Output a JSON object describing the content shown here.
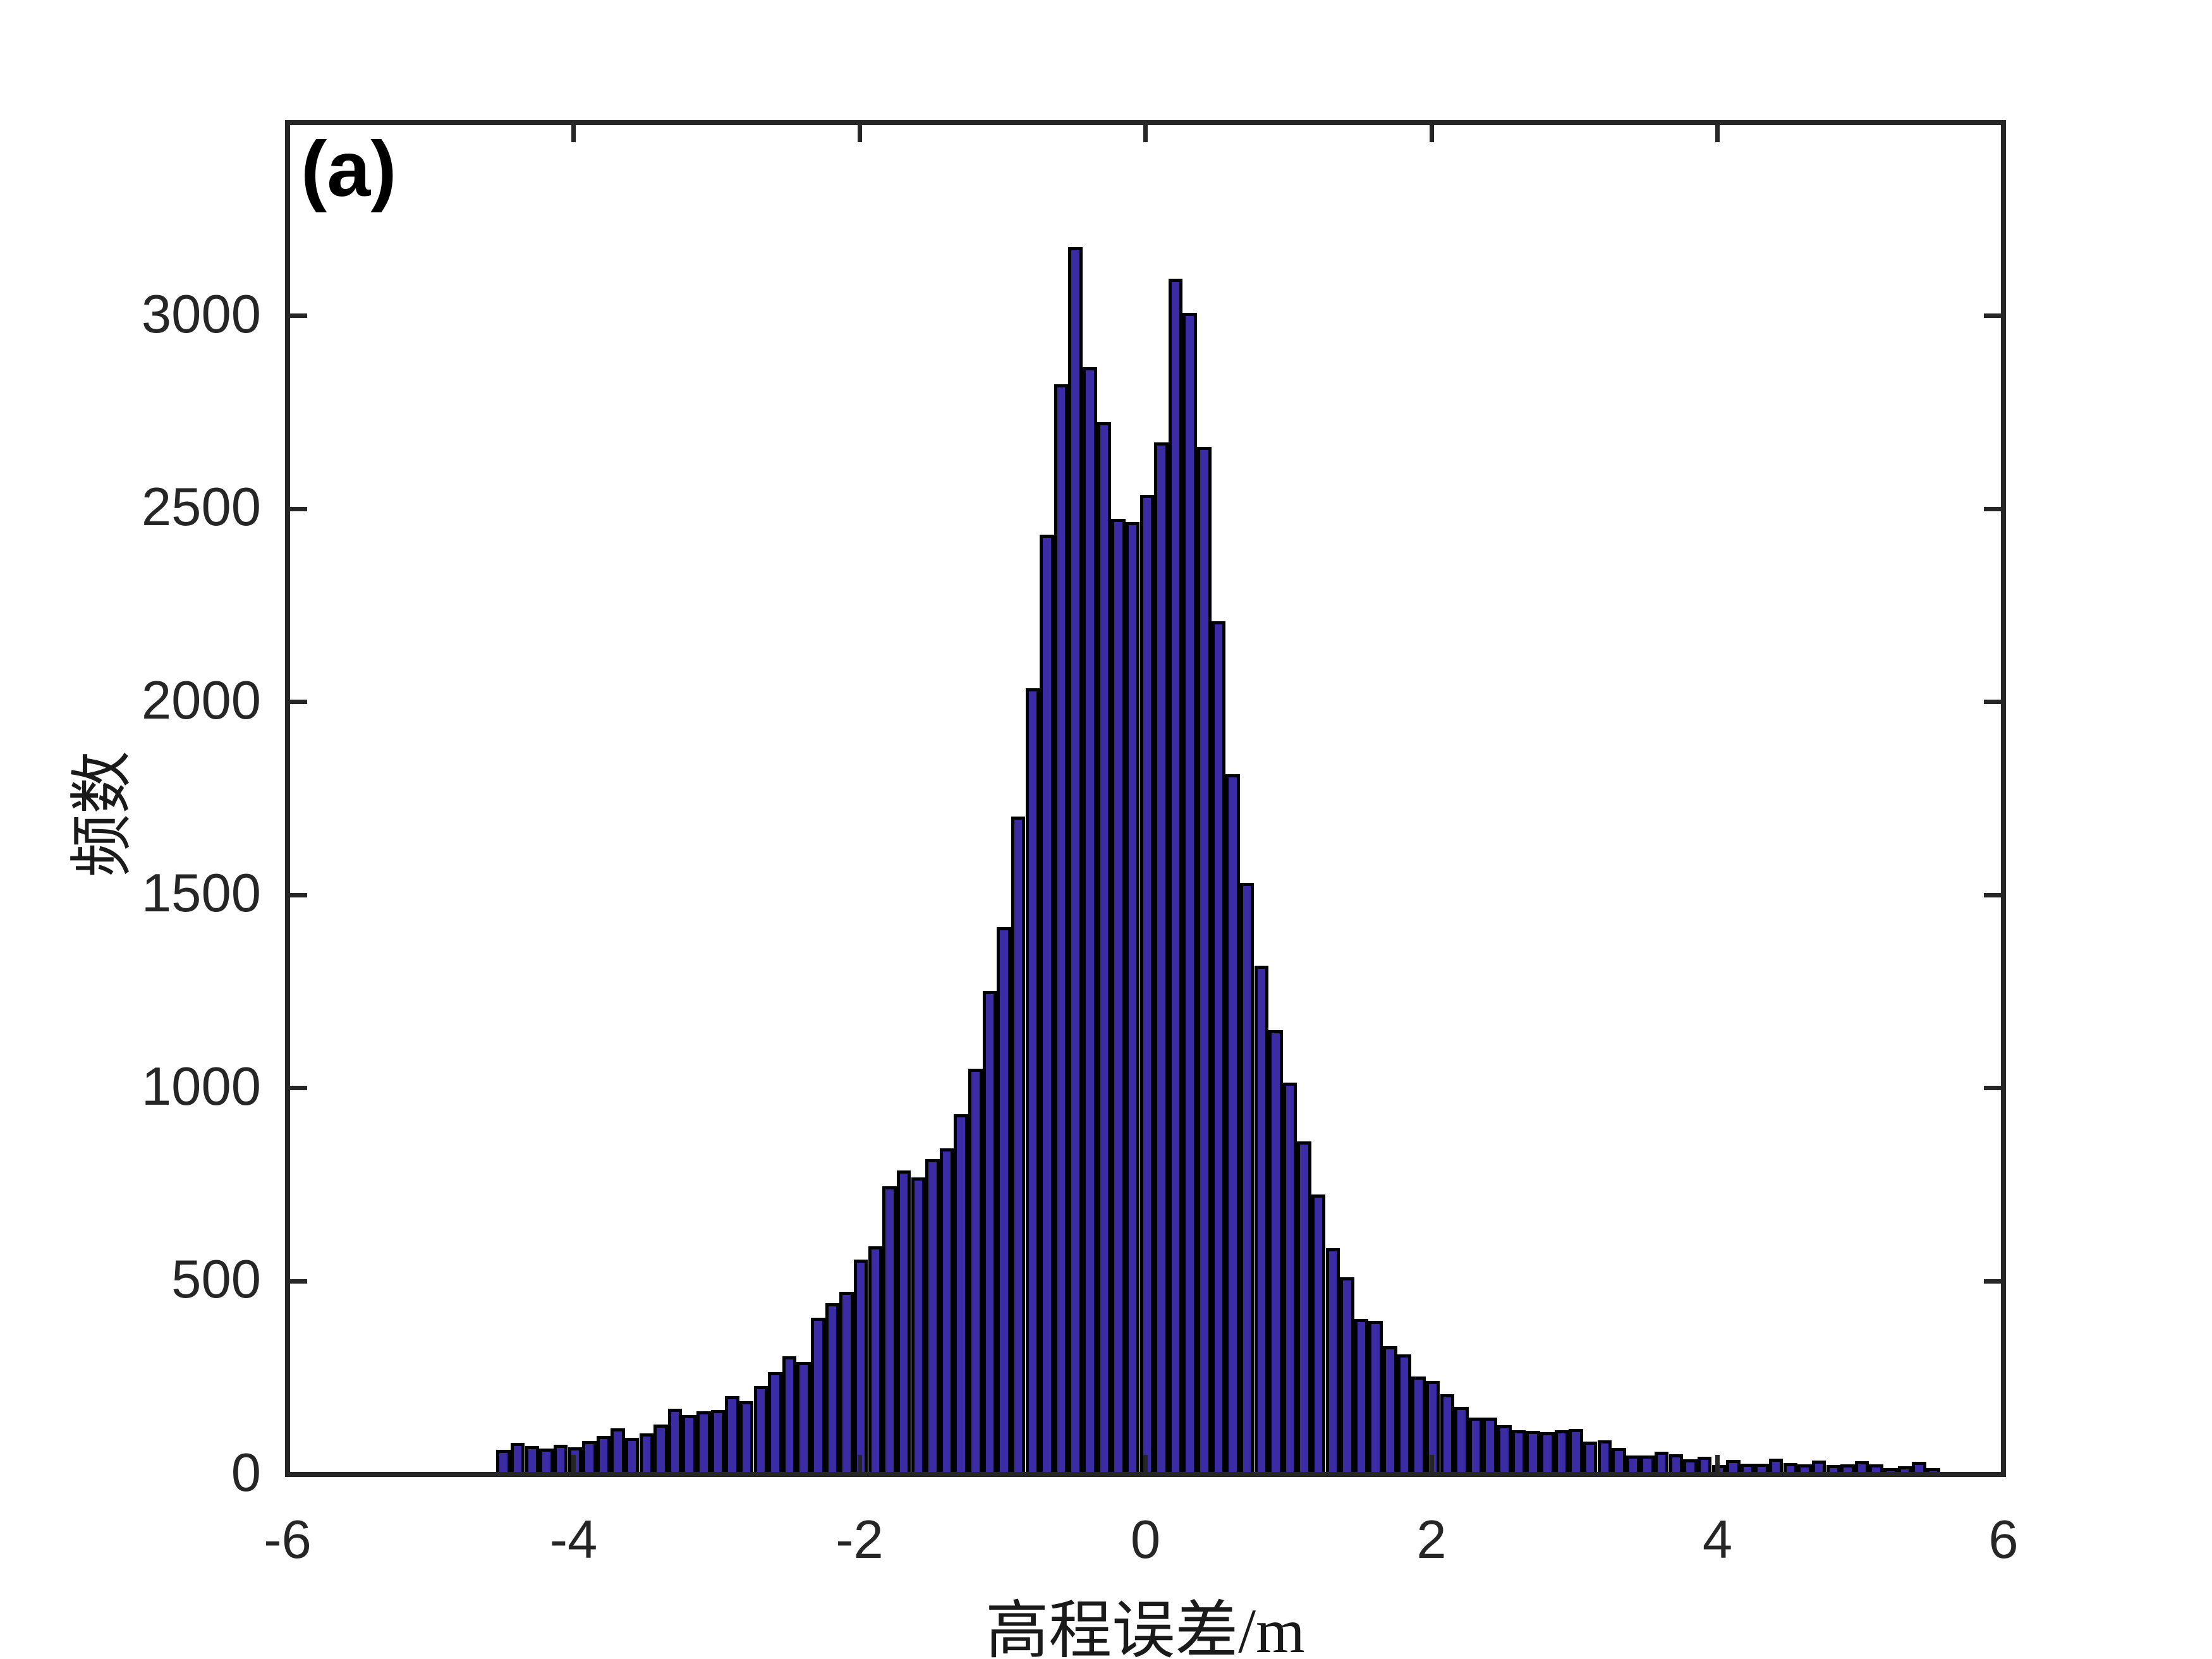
{
  "figure": {
    "panel_label": "(a)",
    "background_color": "#ffffff"
  },
  "axes": {
    "x_label": "高程误差/m",
    "y_label": "频数",
    "x_ticks": [
      -6,
      -4,
      -2,
      0,
      2,
      4,
      6
    ],
    "y_ticks": [
      0,
      500,
      1000,
      1500,
      2000,
      2500,
      3000
    ],
    "axis_color": "#262626",
    "tick_direction": "in",
    "box": true
  },
  "chart_data": {
    "type": "bar",
    "subtype": "histogram",
    "title": "",
    "xlabel": "高程误差/m",
    "ylabel": "频数",
    "xlim": [
      -6,
      6
    ],
    "ylim": [
      0,
      3500
    ],
    "grid": false,
    "legend": null,
    "bin_start": -4.54,
    "bin_width": 0.1,
    "bar_face_color": "#3B2BA5",
    "bar_edge_color": "#000000",
    "values": [
      57,
      75,
      67,
      61,
      70,
      64,
      80,
      93,
      113,
      88,
      100,
      122,
      163,
      148,
      157,
      160,
      197,
      184,
      222,
      258,
      299,
      285,
      400,
      437,
      467,
      550,
      585,
      740,
      781,
      762,
      810,
      838,
      927,
      1044,
      1246,
      1411,
      1697,
      2029,
      2427,
      2816,
      3171,
      2860,
      2718,
      2468,
      2460,
      2530,
      2665,
      3089,
      3001,
      2654,
      2202,
      1807,
      1525,
      1311,
      1144,
      1008,
      856,
      718,
      580,
      504,
      396,
      391,
      326,
      304,
      247,
      236,
      202,
      168,
      140,
      141,
      121,
      108,
      107,
      103,
      108,
      111,
      78,
      82,
      62,
      42,
      43,
      52,
      46,
      32,
      39,
      18,
      31,
      22,
      22,
      34,
      23,
      19,
      29,
      18,
      19,
      28,
      20,
      10,
      15,
      26,
      10
    ]
  }
}
